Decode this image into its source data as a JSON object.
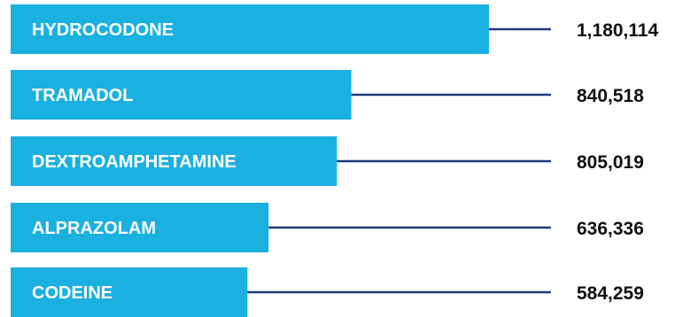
{
  "colors": {
    "bar": "#1ab0e0",
    "leader_line": "#1f3a7a",
    "label_text": "#ffffff",
    "value_text": "#111111"
  },
  "chart_data": {
    "type": "bar",
    "orientation": "horizontal",
    "categories": [
      "HYDROCODONE",
      "TRAMADOL",
      "DEXTROAMPHETAMINE",
      "ALPRAZOLAM",
      "CODEINE"
    ],
    "values": [
      1180114,
      840518,
      805019,
      636336,
      584259
    ],
    "value_labels": [
      "1,180,114",
      "840,518",
      "805,019",
      "636,336",
      "584,259"
    ],
    "title": "",
    "xlabel": "",
    "ylabel": "",
    "grid": false,
    "legend": "none"
  }
}
